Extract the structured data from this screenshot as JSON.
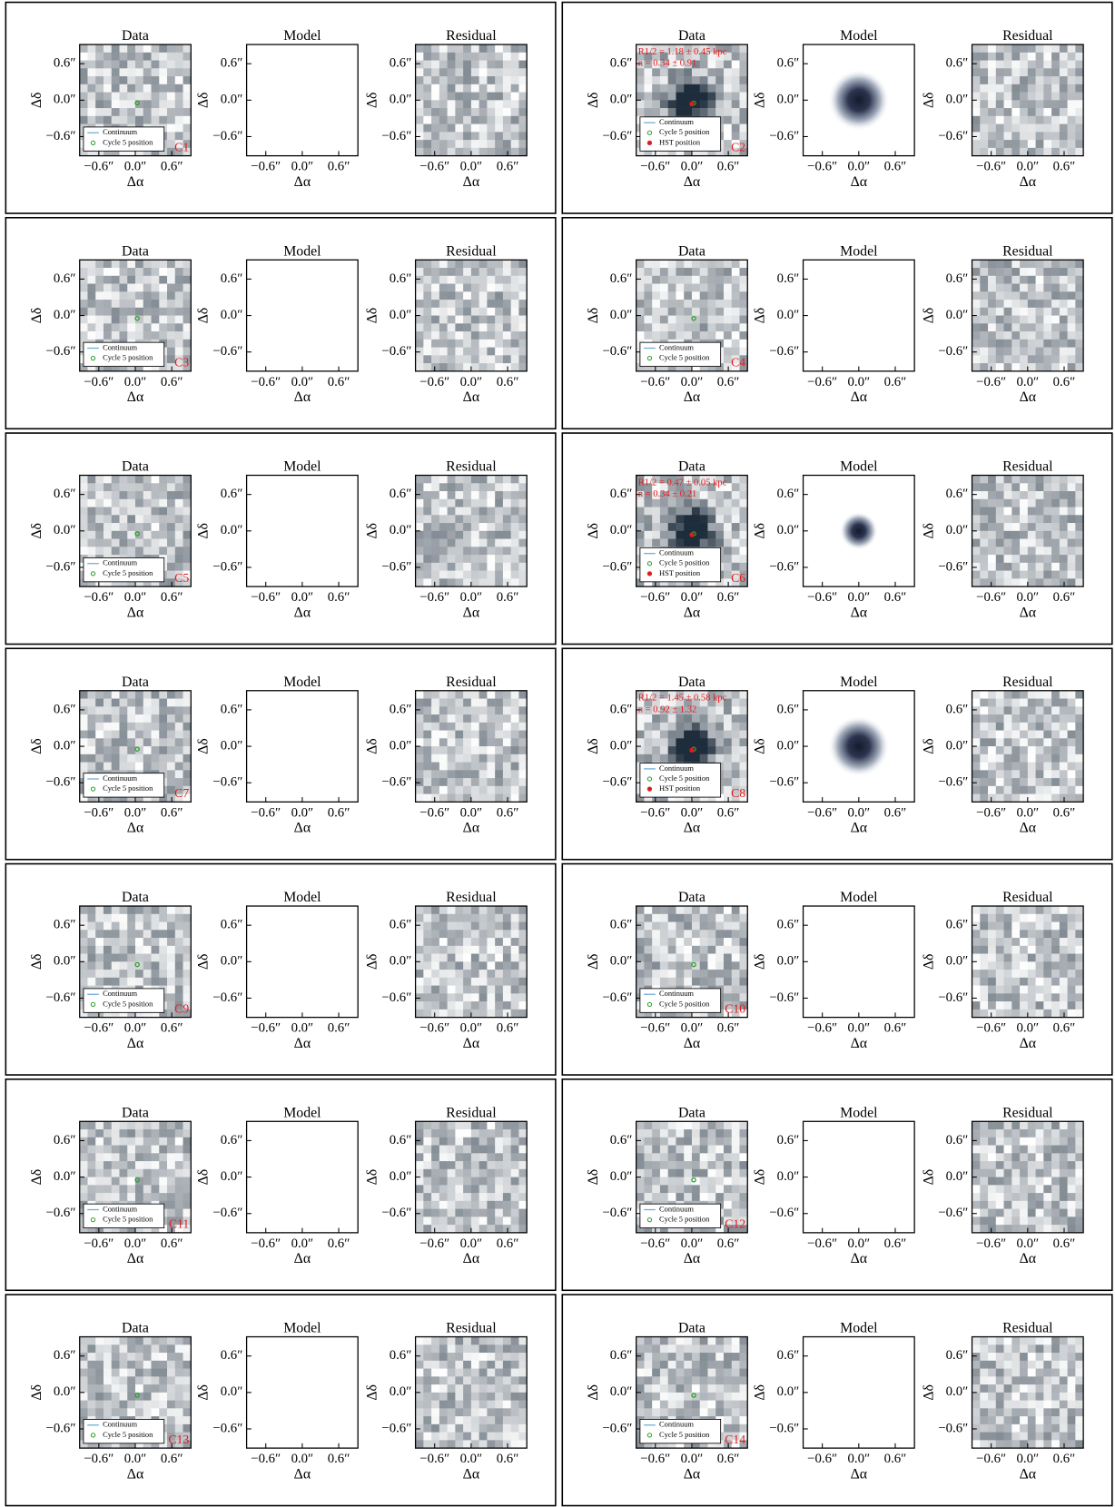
{
  "figure": {
    "panel_titles": [
      "Data",
      "Model",
      "Residual"
    ],
    "tick_labels": [
      "−0.6″",
      "0.0″",
      "0.6″"
    ],
    "x_label": "Δα",
    "y_label": "Δδ",
    "sources": [
      {
        "id": "C1",
        "legend": [
          "Continuum",
          "Cycle 5 position"
        ]
      },
      {
        "id": "C2",
        "legend": [
          "Continuum",
          "Cycle 5 position",
          "HST position"
        ],
        "annotation": [
          "R1/2 = 1.18 ± 0.45 kpc",
          "n = 0.34 ± 0.91"
        ]
      },
      {
        "id": "C3",
        "legend": [
          "Continuum",
          "Cycle 5 position"
        ]
      },
      {
        "id": "C4",
        "legend": [
          "Continuum",
          "Cycle 5 position"
        ]
      },
      {
        "id": "C5",
        "legend": [
          "Continuum",
          "Cycle 5 position"
        ]
      },
      {
        "id": "C6",
        "legend": [
          "Continuum",
          "Cycle 5 position",
          "HST position"
        ],
        "annotation": [
          "R1/2 = 0.47 ± 0.05 kpc",
          "n = 0.34 ± 0.21"
        ]
      },
      {
        "id": "C7",
        "legend": [
          "Continuum",
          "Cycle 5 position"
        ]
      },
      {
        "id": "C8",
        "legend": [
          "Continuum",
          "Cycle 5 position",
          "HST position"
        ],
        "annotation": [
          "R1/2 = 1.45 ± 0.58 kpc",
          "n = 0.92 ± 1.32"
        ]
      },
      {
        "id": "C9",
        "legend": [
          "Continuum",
          "Cycle 5 position"
        ]
      },
      {
        "id": "C10",
        "legend": [
          "Continuum",
          "Cycle 5 position"
        ]
      },
      {
        "id": "C11",
        "legend": [
          "Continuum",
          "Cycle 5 position"
        ]
      },
      {
        "id": "C12",
        "legend": [
          "Continuum",
          "Cycle 5 position"
        ]
      },
      {
        "id": "C13",
        "legend": [
          "Continuum",
          "Cycle 5 position"
        ]
      },
      {
        "id": "C14",
        "legend": [
          "Continuum",
          "Cycle 5 position"
        ]
      }
    ]
  }
}
